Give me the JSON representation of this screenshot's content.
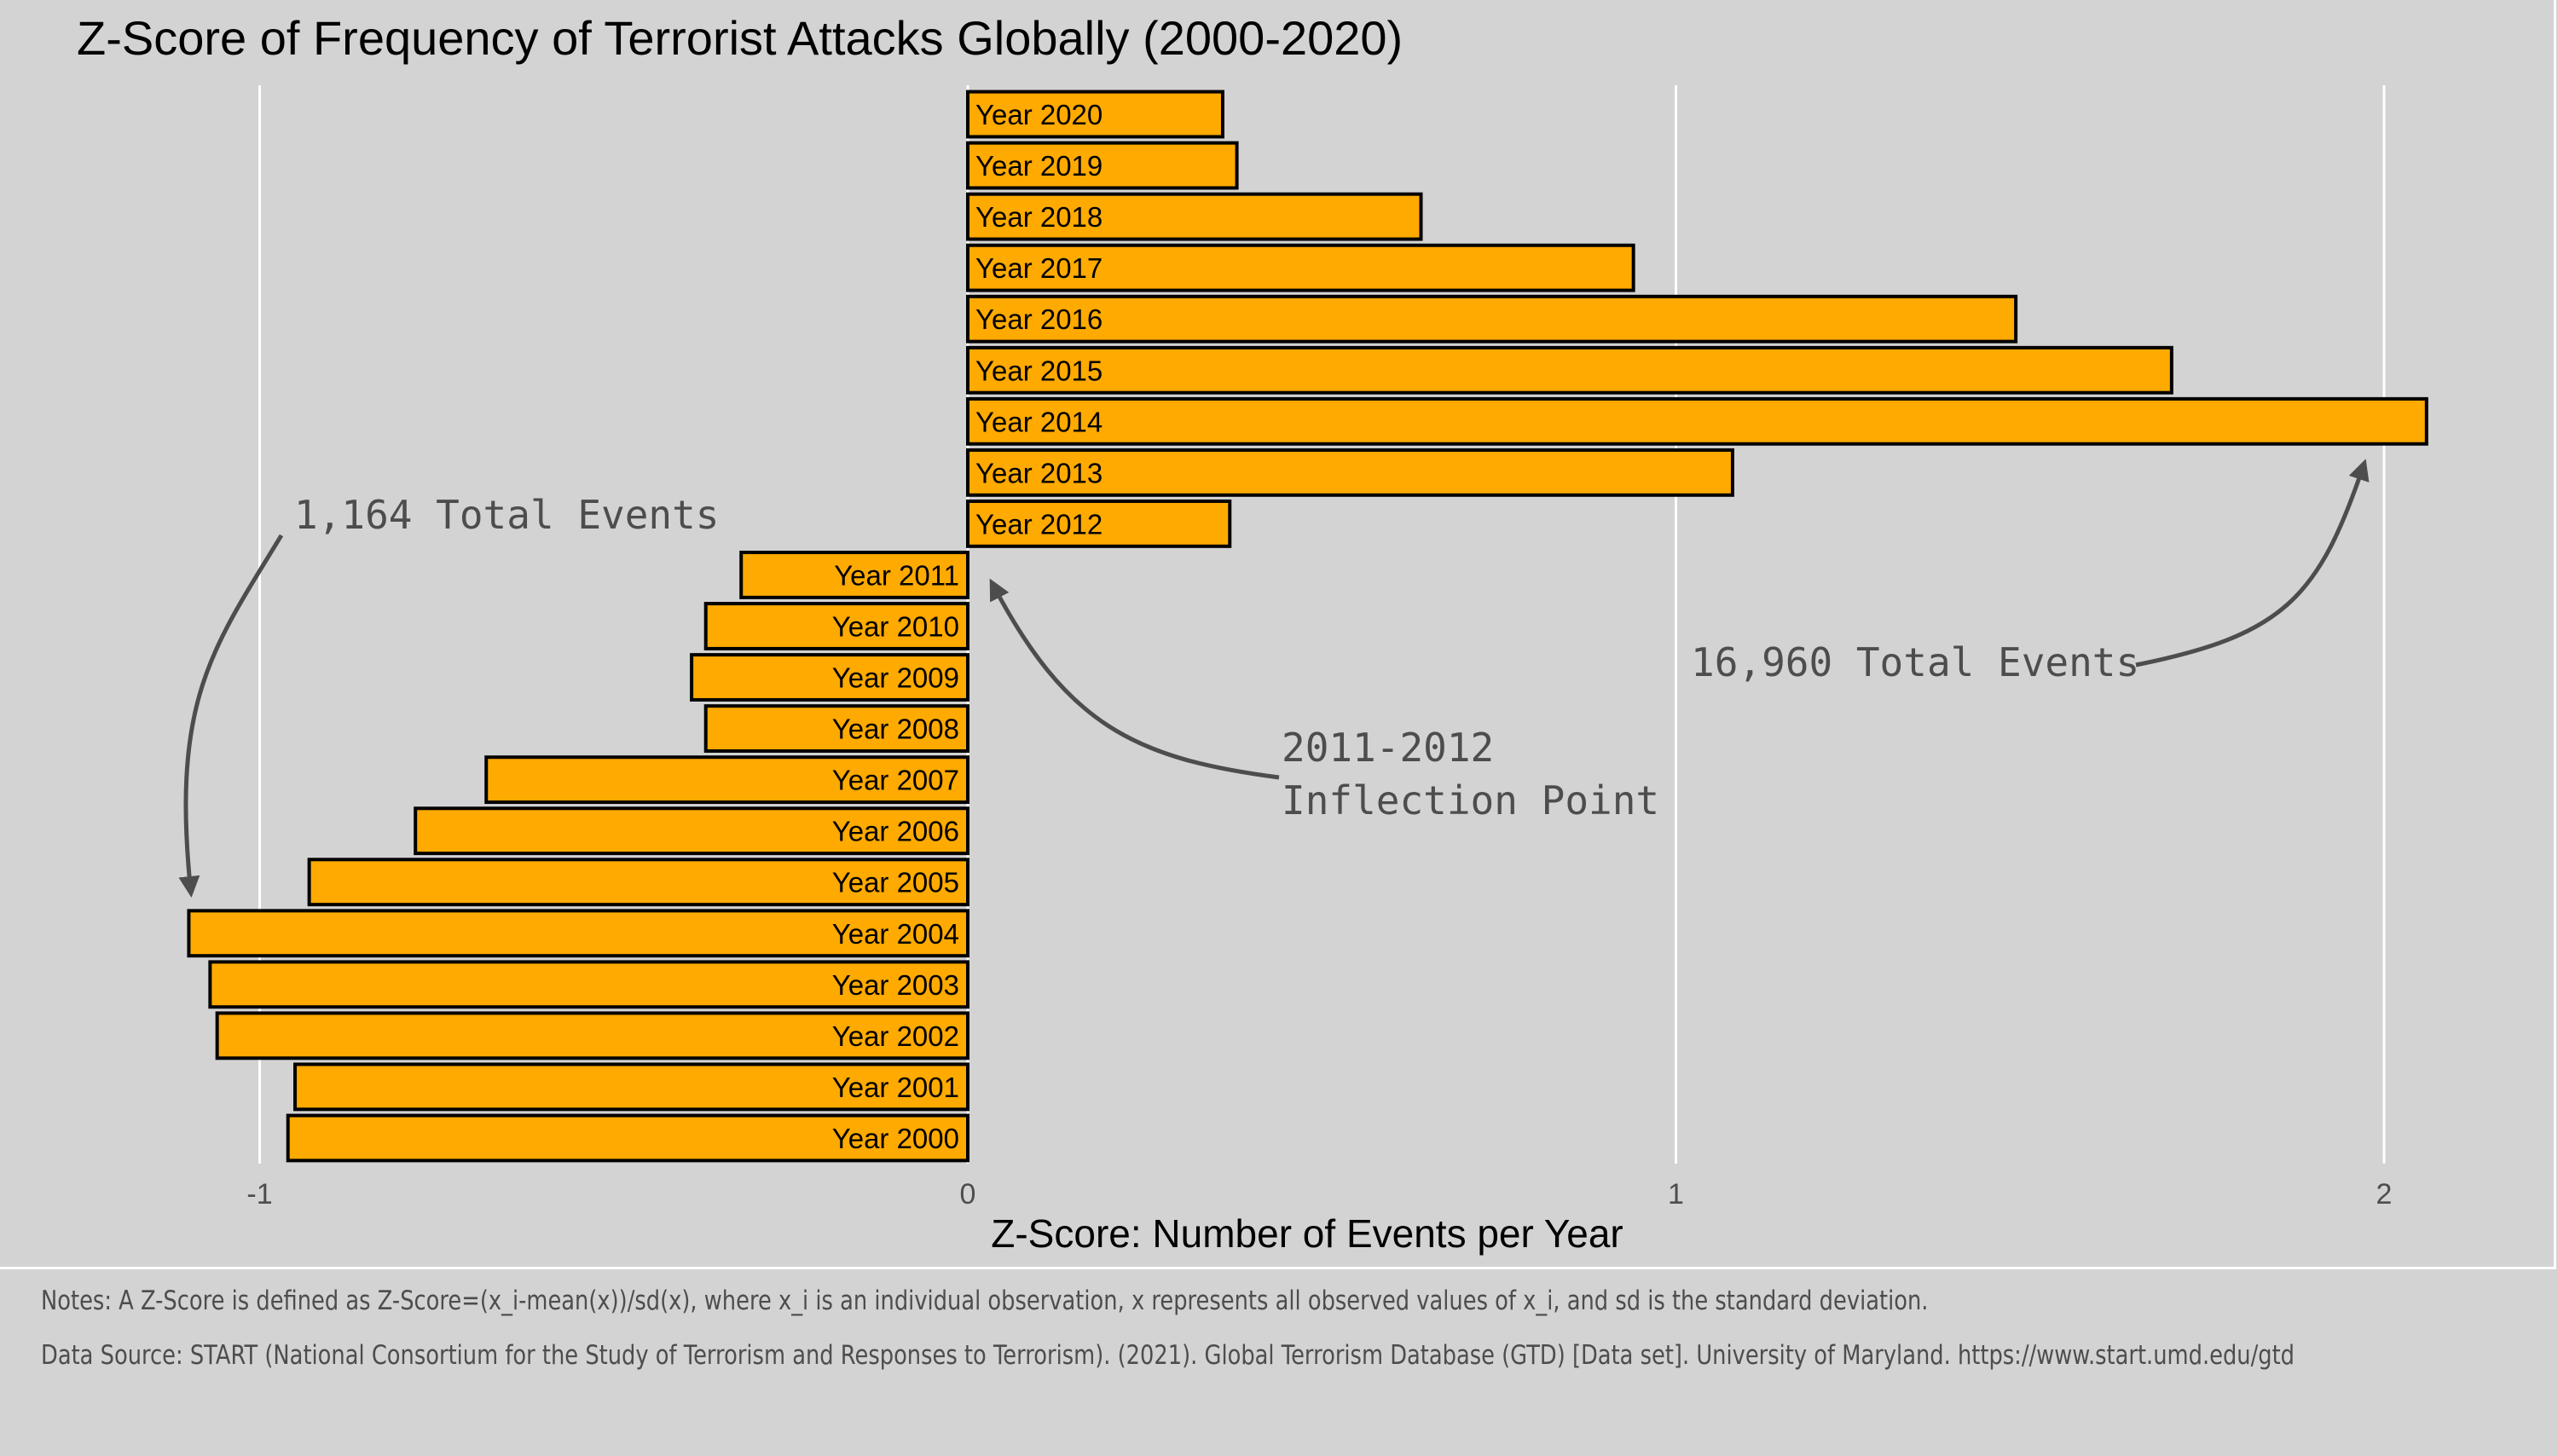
{
  "chart_data": {
    "type": "bar",
    "orientation": "horizontal",
    "title": "Z-Score of Frequency of Terrorist Attacks Globally (2000-2020)",
    "xlabel": "Z-Score: Number of Events per Year",
    "ylabel": "",
    "xlim": [
      -1.1,
      2.25
    ],
    "xticks": [
      -1,
      0,
      1,
      2
    ],
    "xtick_labels": [
      "-1",
      "0",
      "1",
      "2"
    ],
    "grid": "vertical major only",
    "bar_color": "#ffaa00",
    "bar_edge_color": "#000000",
    "categories": [
      "Year 2000",
      "Year 2001",
      "Year 2002",
      "Year 2003",
      "Year 2004",
      "Year 2005",
      "Year 2006",
      "Year 2007",
      "Year 2008",
      "Year 2009",
      "Year 2010",
      "Year 2011",
      "Year 2012",
      "Year 2013",
      "Year 2014",
      "Year 2015",
      "Year 2016",
      "Year 2017",
      "Year 2018",
      "Year 2019",
      "Year 2020"
    ],
    "values": [
      -0.96,
      -0.95,
      -1.06,
      -1.07,
      -1.1,
      -0.93,
      -0.78,
      -0.68,
      -0.37,
      -0.39,
      -0.37,
      -0.32,
      0.37,
      1.08,
      2.06,
      1.7,
      1.48,
      0.94,
      0.64,
      0.38,
      0.36
    ],
    "annotations": [
      {
        "text": "1,164 Total Events",
        "points_to": "Year 2004"
      },
      {
        "text_lines": [
          "2011-2012",
          "Inflection Point"
        ],
        "points_to": "Year 2011-2012 boundary"
      },
      {
        "text": "16,960 Total Events",
        "points_to": "Year 2014"
      }
    ]
  },
  "notes": {
    "line1": "Notes: A Z-Score is defined as Z-Score=(x_i-mean(x))/sd(x), where x_i is an individual observation, x represents all observed values of x_i, and sd is the standard deviation.",
    "line2": "Data Source: START (National Consortium for the Study of Terrorism and Responses to Terrorism). (2021). Global Terrorism Database (GTD) [Data set]. University of Maryland. https://www.start.umd.edu/gtd"
  },
  "colors": {
    "background": "#d3d3d3",
    "grid": "#ffffff",
    "bar": "#ffaa00",
    "annotation": "#4d4d4d"
  }
}
